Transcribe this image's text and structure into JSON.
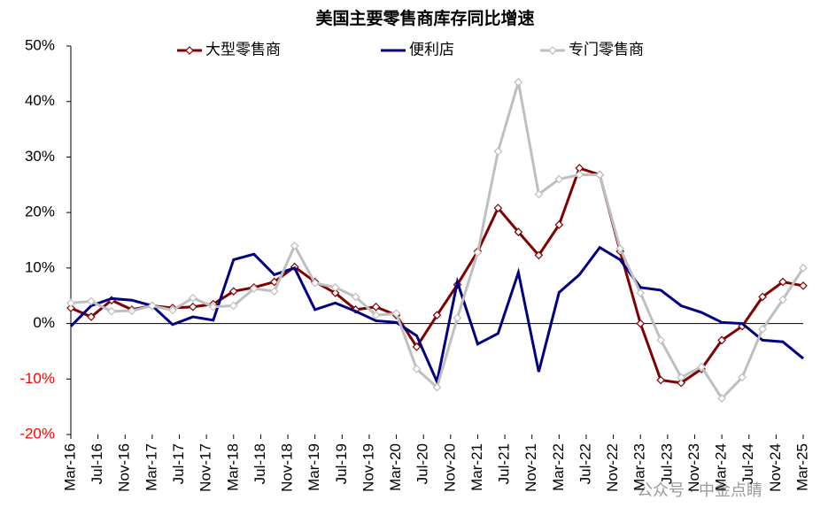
{
  "chart_data": {
    "type": "line",
    "title": "美国主要零售商库存同比增速",
    "x": [
      0,
      3,
      6,
      9,
      12,
      15,
      18,
      21,
      24,
      27,
      30,
      33,
      36,
      39,
      42,
      45,
      48,
      51,
      54,
      57,
      60,
      63,
      66,
      69,
      72,
      75,
      78,
      81,
      84,
      87,
      90,
      93,
      96,
      99,
      102,
      105,
      108
    ],
    "xlim": [
      0,
      108
    ],
    "xticks": [
      {
        "value": 0,
        "label": "Mar-16"
      },
      {
        "value": 4,
        "label": "Jul-16"
      },
      {
        "value": 8,
        "label": "Nov-16"
      },
      {
        "value": 12,
        "label": "Mar-17"
      },
      {
        "value": 16,
        "label": "Jul-17"
      },
      {
        "value": 20,
        "label": "Nov-17"
      },
      {
        "value": 24,
        "label": "Mar-18"
      },
      {
        "value": 28,
        "label": "Jul-18"
      },
      {
        "value": 32,
        "label": "Nov-18"
      },
      {
        "value": 36,
        "label": "Mar-19"
      },
      {
        "value": 40,
        "label": "Jul-19"
      },
      {
        "value": 44,
        "label": "Nov-19"
      },
      {
        "value": 48,
        "label": "Mar-20"
      },
      {
        "value": 52,
        "label": "Jul-20"
      },
      {
        "value": 56,
        "label": "Nov-20"
      },
      {
        "value": 60,
        "label": "Mar-21"
      },
      {
        "value": 64,
        "label": "Jul-21"
      },
      {
        "value": 68,
        "label": "Nov-21"
      },
      {
        "value": 72,
        "label": "Mar-22"
      },
      {
        "value": 76,
        "label": "Jul-22"
      },
      {
        "value": 80,
        "label": "Nov-22"
      },
      {
        "value": 84,
        "label": "Mar-23"
      },
      {
        "value": 88,
        "label": "Jul-23"
      },
      {
        "value": 92,
        "label": "Nov-23"
      },
      {
        "value": 96,
        "label": "Mar-24"
      },
      {
        "value": 100,
        "label": "Jul-24"
      },
      {
        "value": 104,
        "label": "Nov-24"
      },
      {
        "value": 108,
        "label": "Mar-25"
      }
    ],
    "ylim": [
      -20,
      50
    ],
    "yticks": [
      {
        "value": -20,
        "label": "-20%"
      },
      {
        "value": -10,
        "label": "-10%"
      },
      {
        "value": 0,
        "label": "0%"
      },
      {
        "value": 10,
        "label": "10%"
      },
      {
        "value": 20,
        "label": "20%"
      },
      {
        "value": 30,
        "label": "30%"
      },
      {
        "value": 40,
        "label": "40%"
      },
      {
        "value": 50,
        "label": "50%"
      }
    ],
    "negative_tick_color": "#ff0000",
    "legend": "top",
    "series": [
      {
        "name": "大型零售商",
        "color": "#7f0000",
        "marker": "diamond",
        "values": [
          2.8,
          1.2,
          4.2,
          2.5,
          3.2,
          2.8,
          3.0,
          3.5,
          5.8,
          6.5,
          7.5,
          10.2,
          7.5,
          5.5,
          2.5,
          3.0,
          1.5,
          -4.2,
          1.5,
          7.0,
          13.0,
          20.8,
          16.5,
          12.3,
          17.8,
          28.0,
          26.8,
          13.0,
          0.0,
          -10.2,
          -10.7,
          -8.2,
          -3.0,
          -0.5,
          4.8,
          7.5,
          6.8
        ]
      },
      {
        "name": "便利店",
        "color": "#000080",
        "marker": "none",
        "values": [
          -0.5,
          3.2,
          4.5,
          4.2,
          3.2,
          -0.2,
          1.2,
          0.6,
          11.5,
          12.5,
          8.8,
          10.0,
          2.5,
          3.7,
          2.2,
          0.5,
          0.2,
          -2.2,
          -10.5,
          7.5,
          -3.7,
          -1.8,
          9.2,
          -8.7,
          5.6,
          8.8,
          13.7,
          11.5,
          6.5,
          6.0,
          3.2,
          2.0,
          0.2,
          0.0,
          -3.0,
          -3.3,
          -6.3
        ]
      },
      {
        "name": "专门零售商",
        "color": "#bfbfbf",
        "marker": "diamond",
        "values": [
          3.7,
          4.0,
          2.2,
          2.3,
          3.2,
          2.4,
          4.6,
          3.0,
          3.2,
          6.3,
          5.8,
          14.0,
          7.3,
          6.5,
          4.8,
          1.5,
          1.8,
          -8.2,
          -11.5,
          1.0,
          12.8,
          31.0,
          43.5,
          23.3,
          26.0,
          26.8,
          26.8,
          13.5,
          5.5,
          -3.0,
          -9.7,
          -7.8,
          -13.5,
          -9.7,
          -1.0,
          4.3,
          10.0
        ]
      }
    ],
    "annotations": [
      "公众号 · 中金点睛"
    ]
  }
}
